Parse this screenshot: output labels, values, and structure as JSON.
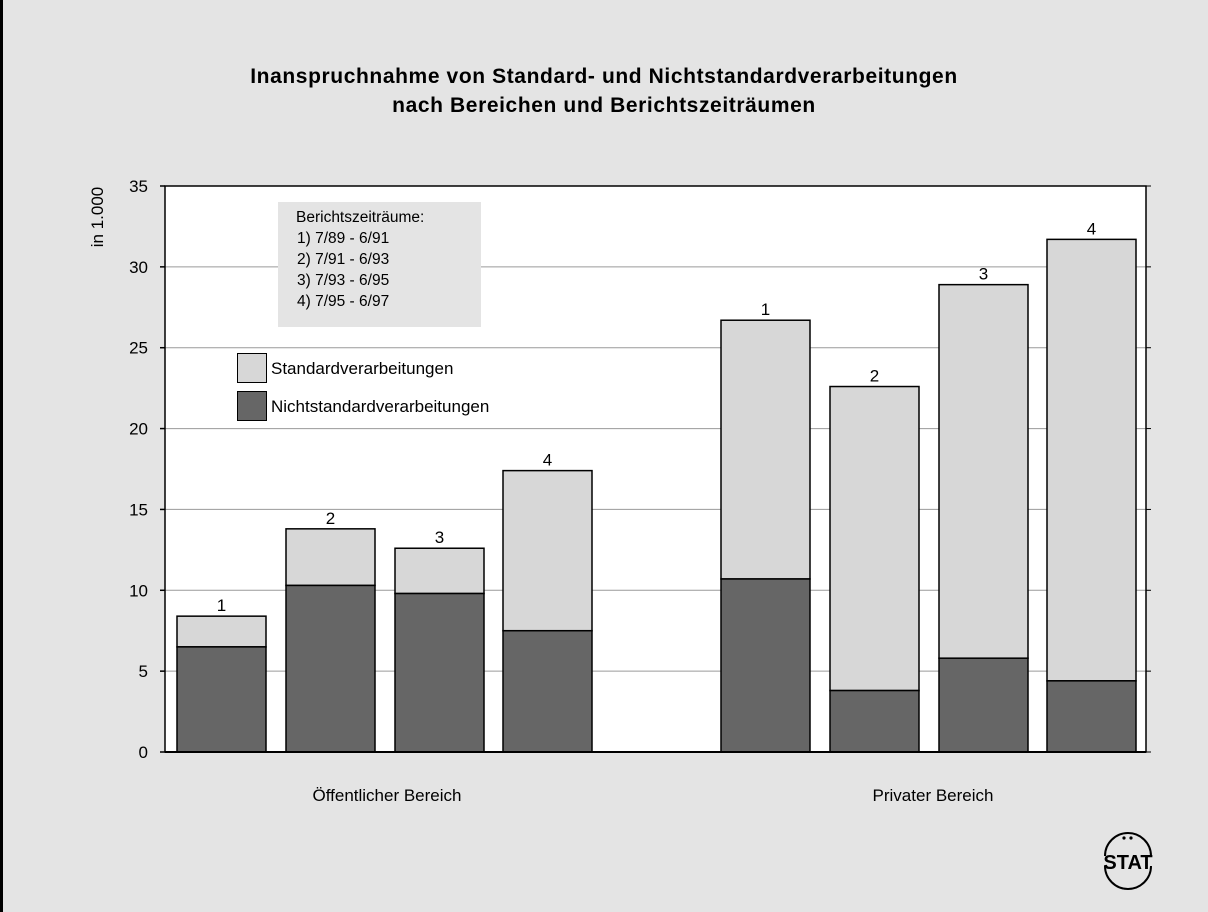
{
  "colors": {
    "background": "#e4e4e4",
    "plot_background": "#ffffff",
    "standard": "#d7d7d7",
    "nichtstandard": "#666666",
    "axis": "#000000",
    "grid": "#9a9a9a"
  },
  "title_line_1": "Inanspruchnahme von Standard- und Nichtstandardverarbeitungen",
  "title_line_2": "nach Bereichen und Berichtszeiträumen",
  "periods_box": {
    "heading": "Berichtszeiträume:",
    "items": [
      "1) 7/89 - 6/91",
      "2) 7/91 - 6/93",
      "3) 7/93 - 6/95",
      "4) 7/95 - 6/97"
    ]
  },
  "legend": {
    "standard": "Standardverarbeitungen",
    "nichtstandard": "Nichtstandardverarbeitungen"
  },
  "logo_text": "STAT",
  "chart_data": {
    "type": "bar",
    "stacked": true,
    "title": "Inanspruchnahme von Standard- und Nichtstandardverarbeitungen nach Bereichen und Berichtszeiträumen",
    "ylabel": "in 1.000",
    "xlabel": "",
    "ylim": [
      0,
      35
    ],
    "yticks": [
      0,
      5,
      10,
      15,
      20,
      25,
      30,
      35
    ],
    "grid": true,
    "legend_position": "top-left",
    "groups": [
      "Öffentlicher Bereich",
      "Privater Bereich"
    ],
    "bar_labels": [
      "1",
      "2",
      "3",
      "4"
    ],
    "categories": [
      "Öffentlicher Bereich 1",
      "Öffentlicher Bereich 2",
      "Öffentlicher Bereich 3",
      "Öffentlicher Bereich 4",
      "Privater Bereich 1",
      "Privater Bereich 2",
      "Privater Bereich 3",
      "Privater Bereich 4"
    ],
    "series": [
      {
        "name": "Nichtstandardverarbeitungen",
        "values": [
          6.5,
          10.3,
          9.8,
          7.5,
          10.7,
          3.8,
          5.8,
          4.4
        ]
      },
      {
        "name": "Standardverarbeitungen",
        "values": [
          1.9,
          3.5,
          2.8,
          9.9,
          16.0,
          18.8,
          23.1,
          27.3
        ]
      }
    ],
    "totals": [
      8.4,
      13.8,
      12.6,
      17.4,
      26.7,
      22.6,
      28.9,
      31.7
    ]
  }
}
